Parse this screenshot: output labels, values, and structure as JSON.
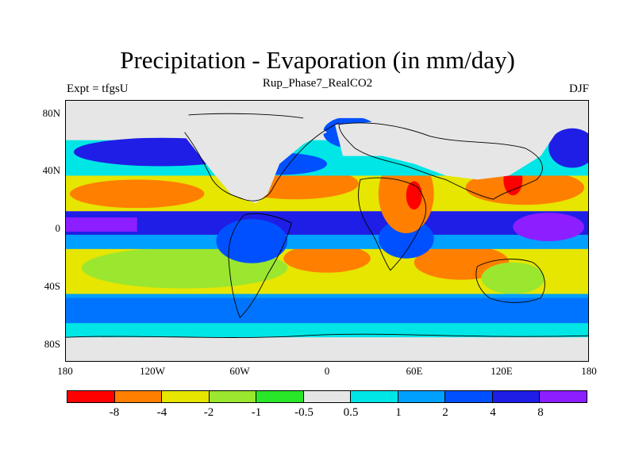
{
  "header": {
    "title": "Precipitation - Evaporation (in mm/day)",
    "subtitle": "Rup_Phase7_RealCO2",
    "left": "Expt = tfgsU",
    "right": "DJF"
  },
  "axes": {
    "lat_ticks": [
      "80N",
      "40N",
      "0",
      "40S",
      "80S"
    ],
    "lon_ticks": [
      "180",
      "120W",
      "60W",
      "0",
      "60E",
      "120E",
      "180"
    ]
  },
  "legend": {
    "colors": [
      "#ff0000",
      "#ff7f00",
      "#e6e600",
      "#9be62f",
      "#28e628",
      "#e6e6e6",
      "#00e6e6",
      "#00a0ff",
      "#0050ff",
      "#1e1ee6",
      "#8c1eff"
    ],
    "labels": [
      "-8",
      "-4",
      "-2",
      "-1",
      "-0.5",
      "0.5",
      "1",
      "2",
      "4",
      "8"
    ]
  },
  "palette": {
    "ocean_default": "#e6e6e6",
    "coast": "#000000"
  }
}
